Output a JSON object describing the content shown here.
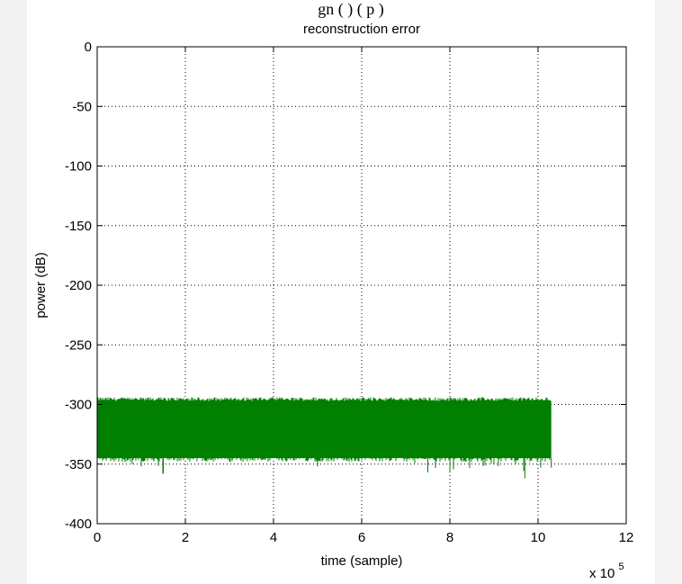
{
  "header_fragment": "gn     (  )         (   p )",
  "chart_data": {
    "type": "area",
    "title": "reconstruction error",
    "xlabel": "time (sample)",
    "ylabel": "power (dB)",
    "xlim": [
      0,
      12
    ],
    "ylim": [
      -400,
      0
    ],
    "x_ticks": [
      0,
      2,
      4,
      6,
      8,
      10,
      12
    ],
    "y_ticks": [
      0,
      -50,
      -100,
      -150,
      -200,
      -250,
      -300,
      -350,
      -400
    ],
    "x_multiplier_label": "x 10",
    "x_multiplier_exponent": "5",
    "grid": true,
    "grid_style": "dotted",
    "series": [
      {
        "color": "#007f00",
        "x_range": [
          0,
          10.3
        ],
        "upper_envelope_approx": -297,
        "lower_envelope_typical": -345,
        "lower_spike_min": -362,
        "x": [
          0,
          1.0,
          1.5,
          2.0,
          3.0,
          4.0,
          5.0,
          6.0,
          7.0,
          7.5,
          8.0,
          9.0,
          9.7,
          10.3
        ],
        "y_low": [
          -343,
          -352,
          -358,
          -345,
          -348,
          -340,
          -352,
          -345,
          -344,
          -357,
          -356,
          -350,
          -362,
          -353
        ]
      }
    ]
  }
}
